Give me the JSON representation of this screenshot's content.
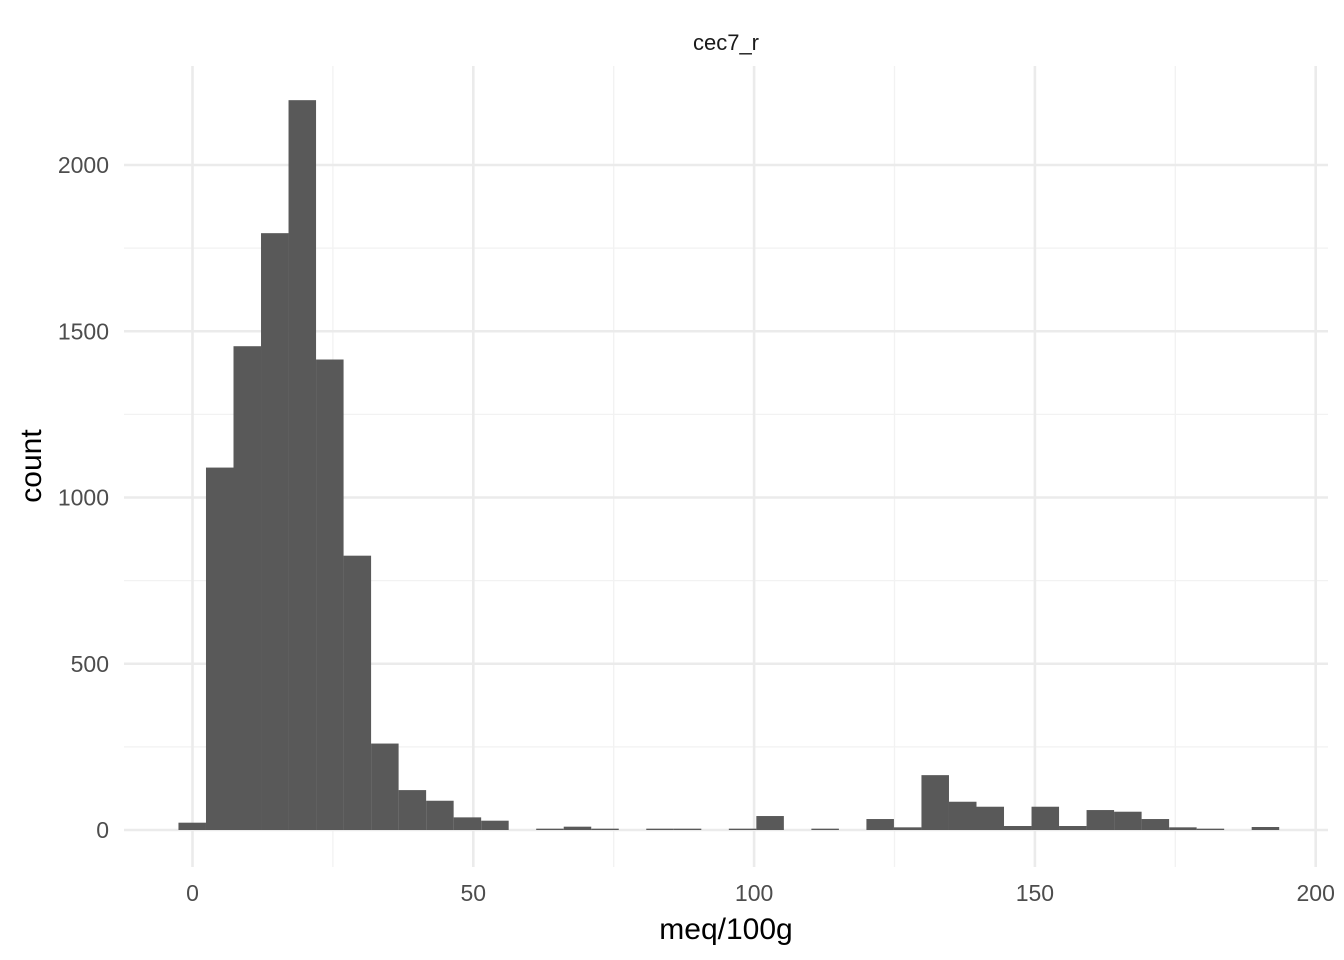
{
  "chart_data": {
    "type": "bar",
    "subtype": "histogram",
    "title": "cec7_r",
    "xlabel": "meq/100g",
    "ylabel": "count",
    "bar_color": "#595959",
    "grid": true,
    "xlim": [
      -12.5,
      202
    ],
    "ylim": [
      -110,
      2320
    ],
    "x_ticks": [
      0,
      50,
      100,
      150,
      200
    ],
    "x_minor_ticks": [
      25,
      75,
      125,
      175
    ],
    "y_ticks": [
      0,
      500,
      1000,
      1500,
      2000
    ],
    "y_minor_ticks": [
      250,
      750,
      1250,
      1750
    ],
    "bins": [
      {
        "x0": -2.5,
        "x1": 2.4,
        "count": 22
      },
      {
        "x0": 2.4,
        "x1": 7.3,
        "count": 1090
      },
      {
        "x0": 7.3,
        "x1": 12.2,
        "count": 1455
      },
      {
        "x0": 12.2,
        "x1": 17.1,
        "count": 1795
      },
      {
        "x0": 17.1,
        "x1": 22.0,
        "count": 2195
      },
      {
        "x0": 22.0,
        "x1": 26.9,
        "count": 1415
      },
      {
        "x0": 26.9,
        "x1": 31.8,
        "count": 825
      },
      {
        "x0": 31.8,
        "x1": 36.7,
        "count": 260
      },
      {
        "x0": 36.7,
        "x1": 41.6,
        "count": 120
      },
      {
        "x0": 41.6,
        "x1": 46.5,
        "count": 88
      },
      {
        "x0": 46.5,
        "x1": 51.4,
        "count": 38
      },
      {
        "x0": 51.4,
        "x1": 56.3,
        "count": 28
      },
      {
        "x0": 56.3,
        "x1": 61.2,
        "count": 0
      },
      {
        "x0": 61.2,
        "x1": 66.1,
        "count": 4
      },
      {
        "x0": 66.1,
        "x1": 71.0,
        "count": 10
      },
      {
        "x0": 71.0,
        "x1": 75.9,
        "count": 4
      },
      {
        "x0": 75.9,
        "x1": 80.8,
        "count": 0
      },
      {
        "x0": 80.8,
        "x1": 85.7,
        "count": 4
      },
      {
        "x0": 85.7,
        "x1": 90.6,
        "count": 4
      },
      {
        "x0": 90.6,
        "x1": 95.5,
        "count": 0
      },
      {
        "x0": 95.5,
        "x1": 100.4,
        "count": 4
      },
      {
        "x0": 100.4,
        "x1": 105.3,
        "count": 42
      },
      {
        "x0": 105.3,
        "x1": 110.2,
        "count": 0
      },
      {
        "x0": 110.2,
        "x1": 115.1,
        "count": 4
      },
      {
        "x0": 115.1,
        "x1": 120.0,
        "count": 0
      },
      {
        "x0": 120.0,
        "x1": 124.9,
        "count": 33
      },
      {
        "x0": 124.9,
        "x1": 129.8,
        "count": 8
      },
      {
        "x0": 129.8,
        "x1": 134.7,
        "count": 165
      },
      {
        "x0": 134.7,
        "x1": 139.6,
        "count": 85
      },
      {
        "x0": 139.6,
        "x1": 144.5,
        "count": 70
      },
      {
        "x0": 144.5,
        "x1": 149.4,
        "count": 12
      },
      {
        "x0": 149.4,
        "x1": 154.3,
        "count": 70
      },
      {
        "x0": 154.3,
        "x1": 159.2,
        "count": 12
      },
      {
        "x0": 159.2,
        "x1": 164.1,
        "count": 60
      },
      {
        "x0": 164.1,
        "x1": 169.0,
        "count": 55
      },
      {
        "x0": 169.0,
        "x1": 173.9,
        "count": 33
      },
      {
        "x0": 173.9,
        "x1": 178.8,
        "count": 8
      },
      {
        "x0": 178.8,
        "x1": 183.7,
        "count": 4
      },
      {
        "x0": 183.7,
        "x1": 188.6,
        "count": 0
      },
      {
        "x0": 188.6,
        "x1": 193.5,
        "count": 9
      }
    ]
  }
}
